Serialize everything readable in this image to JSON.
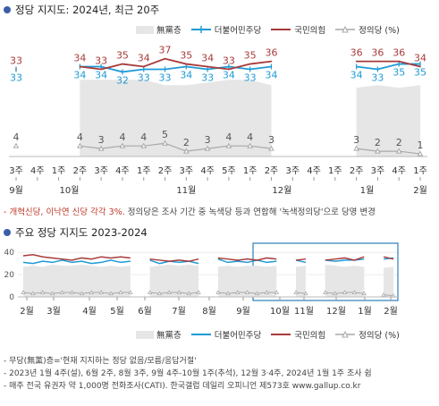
{
  "top": {
    "title": "정당 지지도: 2024년, 최근 20주",
    "legend": [
      "無黨층",
      "더불어민주당",
      "국민의힘",
      "정의당 (%)"
    ],
    "note_red": "- 개혁신당, 이낙연 신당 각각 3%.",
    "note_rest": " 정의당은 조사 기간 중 녹색당 등과 연합해 '녹색정의당'으로 당명 변경"
  },
  "bottom": {
    "title": "주요 정당 지지도 2023-2024",
    "legend": [
      "無黨층",
      "더불어민주당",
      "국민의힘",
      "정의당 (%)"
    ],
    "y_ticks": [
      "40",
      "20",
      "0"
    ],
    "month_labels": [
      "2월",
      "3월",
      "4월",
      "5월",
      "6월",
      "7월",
      "8월",
      "9월",
      "10월",
      "11월",
      "12월",
      "1월",
      "2월"
    ]
  },
  "footer": [
    "- 무당(無黨)층='현재 지지하는 정당 없음/모름/응답거절'",
    "- 2023년 1월 4주(설), 6월 2주, 8월 3주, 9월 4주-10월 1주(추석), 12월 3·4주, 2024년 1월 1주 조사 쉼",
    "- 매주 전국 유권자 약 1,000명 전화조사(CATI). 한국갤럽 데일리 오피니언 제573호 www.gallup.co.kr"
  ],
  "colors": {
    "independent": "#e6e6e6",
    "democratic": "#1f9ad6",
    "ppp": "#a83a3a",
    "justice": "#a9a9a9",
    "accent": "#3a5fa8"
  },
  "chart_data": [
    {
      "type": "line",
      "title": "정당 지지도: 2024년, 최근 20주",
      "categories": [
        "9월 3주",
        "9월 4주",
        "10월 1주",
        "10월 2주",
        "10월 3주",
        "10월 4주",
        "11월 1주",
        "11월 2주",
        "11월 3주",
        "11월 4주",
        "11월 5주",
        "12월 1주",
        "12월 2주",
        "12월 3주",
        "12월 4주",
        "1월 1주",
        "1월 2주",
        "1월 3주",
        "1월 4주",
        "2월 1주"
      ],
      "week_labels": [
        "3주",
        "4주",
        "1주",
        "2주",
        "3주",
        "4주",
        "1주",
        "2주",
        "3주",
        "4주",
        "5주",
        "1주",
        "2주",
        "3주",
        "4주",
        "1주",
        "2주",
        "3주",
        "4주",
        "1주"
      ],
      "month_labels": [
        "9월",
        "10월",
        "11월",
        "12월",
        "1월",
        "2월"
      ],
      "series": [
        {
          "name": "더불어민주당",
          "values": [
            33,
            null,
            null,
            34,
            34,
            32,
            33,
            33,
            34,
            33,
            34,
            33,
            34,
            null,
            null,
            null,
            34,
            33,
            35,
            35
          ]
        },
        {
          "name": "국민의힘",
          "values": [
            33,
            null,
            null,
            34,
            33,
            35,
            34,
            37,
            35,
            34,
            33,
            35,
            36,
            null,
            null,
            null,
            36,
            36,
            36,
            34
          ]
        },
        {
          "name": "정의당",
          "values": [
            4,
            null,
            null,
            4,
            3,
            4,
            4,
            5,
            2,
            3,
            4,
            4,
            3,
            null,
            null,
            null,
            3,
            2,
            2,
            1
          ]
        },
        {
          "name": "無黨층",
          "values": [
            null,
            null,
            null,
            29,
            29,
            29,
            29,
            27,
            27,
            28,
            29,
            29,
            27,
            null,
            null,
            null,
            26,
            27,
            26,
            27
          ]
        }
      ],
      "ylim": [
        0,
        45
      ]
    },
    {
      "type": "line",
      "title": "주요 정당 지지도 2023-2024",
      "x_range": [
        "2023-02",
        "2024-02"
      ],
      "ylim": [
        0,
        45
      ],
      "series": [
        {
          "name": "더불어민주당",
          "values": [
            31,
            30,
            32,
            31,
            33,
            31,
            32,
            30,
            31,
            33,
            31,
            32,
            null,
            33,
            30,
            32,
            31,
            32,
            30,
            null,
            34,
            31,
            32,
            31,
            33,
            31,
            32,
            null,
            33,
            31,
            null,
            33,
            32,
            33,
            33,
            34,
            null,
            34,
            35
          ]
        },
        {
          "name": "국민의힘",
          "values": [
            37,
            38,
            36,
            35,
            34,
            33,
            35,
            34,
            36,
            35,
            36,
            35,
            null,
            34,
            33,
            32,
            33,
            32,
            34,
            null,
            35,
            34,
            33,
            34,
            33,
            35,
            34,
            null,
            33,
            34,
            null,
            33,
            34,
            35,
            33,
            36,
            null,
            36,
            34
          ]
        },
        {
          "name": "정의당",
          "values": [
            4,
            3,
            4,
            3,
            4,
            4,
            3,
            4,
            4,
            3,
            4,
            4,
            null,
            4,
            3,
            4,
            4,
            3,
            4,
            null,
            4,
            3,
            4,
            4,
            3,
            4,
            4,
            null,
            4,
            3,
            null,
            4,
            3,
            4,
            4,
            3,
            null,
            2,
            1
          ]
        },
        {
          "name": "無黨층",
          "values": [
            27,
            28,
            27,
            29,
            28,
            28,
            29,
            28,
            27,
            28,
            27,
            28,
            null,
            27,
            28,
            29,
            28,
            29,
            28,
            null,
            27,
            28,
            27,
            28,
            28,
            27,
            28,
            null,
            27,
            28,
            null,
            29,
            28,
            27,
            28,
            27,
            null,
            26,
            27
          ]
        }
      ]
    }
  ]
}
